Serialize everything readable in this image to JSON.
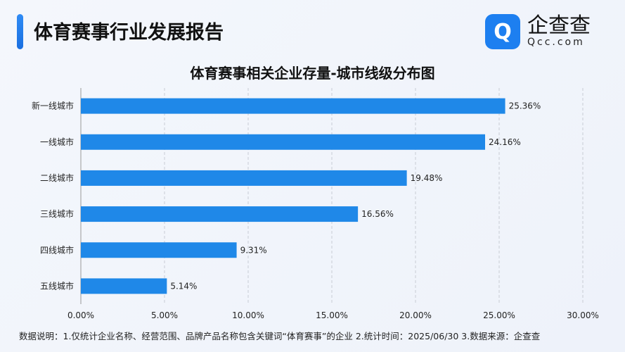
{
  "header": {
    "title": "体育赛事行业发展报告",
    "logo_cn": "企查查",
    "logo_en": "Qcc.com"
  },
  "chart_data": {
    "type": "bar",
    "orientation": "horizontal",
    "title": "体育赛事相关企业存量-城市线级分布图",
    "categories": [
      "新一线城市",
      "一线城市",
      "二线城市",
      "三线城市",
      "四线城市",
      "五线城市"
    ],
    "values": [
      25.36,
      24.16,
      19.48,
      16.56,
      9.31,
      5.14
    ],
    "labels": [
      "25.36%",
      "24.16%",
      "19.48%",
      "16.56%",
      "9.31%",
      "5.14%"
    ],
    "xlim": [
      0,
      30
    ],
    "xticks": [
      "0.00%",
      "5.00%",
      "10.00%",
      "15.00%",
      "20.00%",
      "25.00%",
      "30.00%"
    ],
    "grid": "vertical dashed",
    "bar_color": "#1f88e8"
  },
  "footer": {
    "note": "数据说明：1.仅统计企业名称、经营范围、品牌产品名称包含关键词“体育赛事”的企业   2.统计时间：2025/06/30   3.数据来源：企查查"
  }
}
